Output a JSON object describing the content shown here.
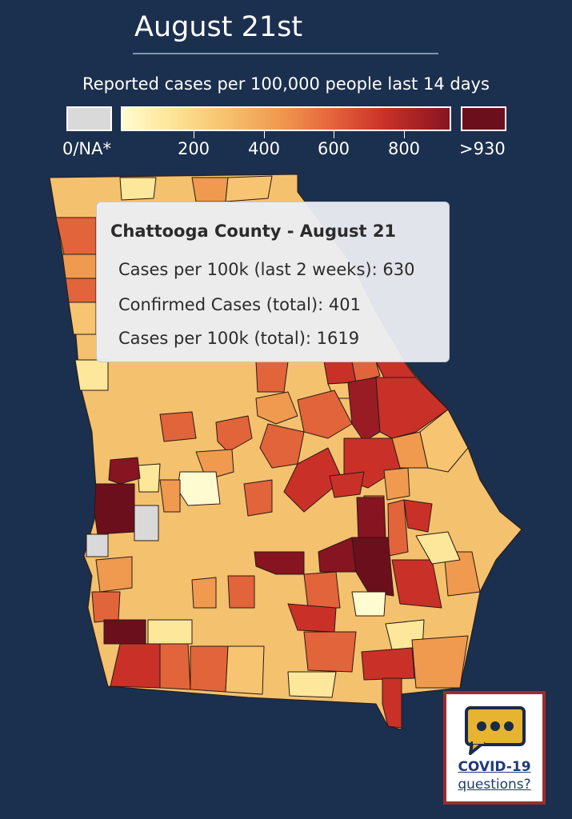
{
  "title": "August 21st",
  "legend": {
    "title": "Reported cases per 100,000 people last 14 days",
    "na_label": "0/NA*",
    "ticks": [
      "200",
      "400",
      "600",
      "800"
    ],
    "max_label": ">930",
    "colors": {
      "na": "#d9d9d9",
      "low": "#fffbd0",
      "mid": "#ef9a4f",
      "high": "#c93128",
      "max": "#6b0f1c"
    },
    "scale_max": 930
  },
  "tooltip": {
    "title": "Chattooga County - August 21",
    "rows": [
      {
        "label": "Cases per 100k (last 2 weeks):",
        "value": "630"
      },
      {
        "label": "Confirmed Cases (total):",
        "value": "401"
      },
      {
        "label": "Cases per 100k (total):",
        "value": "1619"
      }
    ]
  },
  "button": {
    "icon": "chat-bubble-icon",
    "line1": "COVID-19",
    "line2": "questions?"
  }
}
